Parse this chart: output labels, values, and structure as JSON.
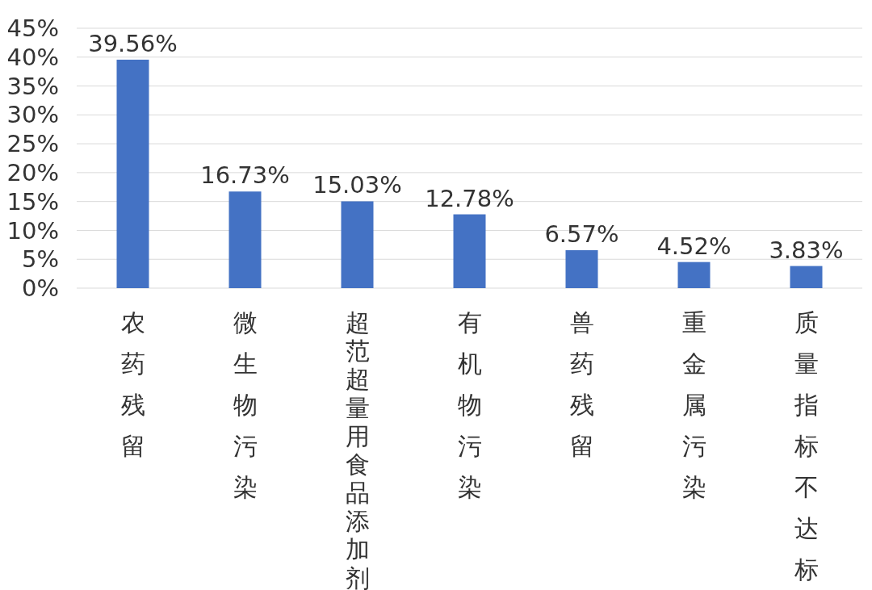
{
  "chart_data": {
    "type": "bar",
    "categories": [
      "农药残留",
      "微生物污染",
      "超范超量用食品添加剂",
      "有机物污染",
      "兽药残留",
      "重金属污染",
      "质量指标不达标"
    ],
    "values": [
      39.56,
      16.73,
      15.03,
      12.78,
      6.57,
      4.52,
      3.83
    ],
    "value_labels": [
      "39.56%",
      "16.73%",
      "15.03%",
      "12.78%",
      "6.57%",
      "4.52%",
      "3.83%"
    ],
    "color": "#4472c4",
    "ylim": [
      0,
      45
    ],
    "yticks": [
      {
        "value": 0,
        "label": "0%"
      },
      {
        "value": 5,
        "label": "5%"
      },
      {
        "value": 10,
        "label": "10%"
      },
      {
        "value": 15,
        "label": "15%"
      },
      {
        "value": 20,
        "label": "20%"
      },
      {
        "value": 25,
        "label": "25%"
      },
      {
        "value": 30,
        "label": "30%"
      },
      {
        "value": 35,
        "label": "35%"
      },
      {
        "value": 40,
        "label": "40%"
      },
      {
        "value": 45,
        "label": "45%"
      }
    ],
    "grid": "y"
  }
}
